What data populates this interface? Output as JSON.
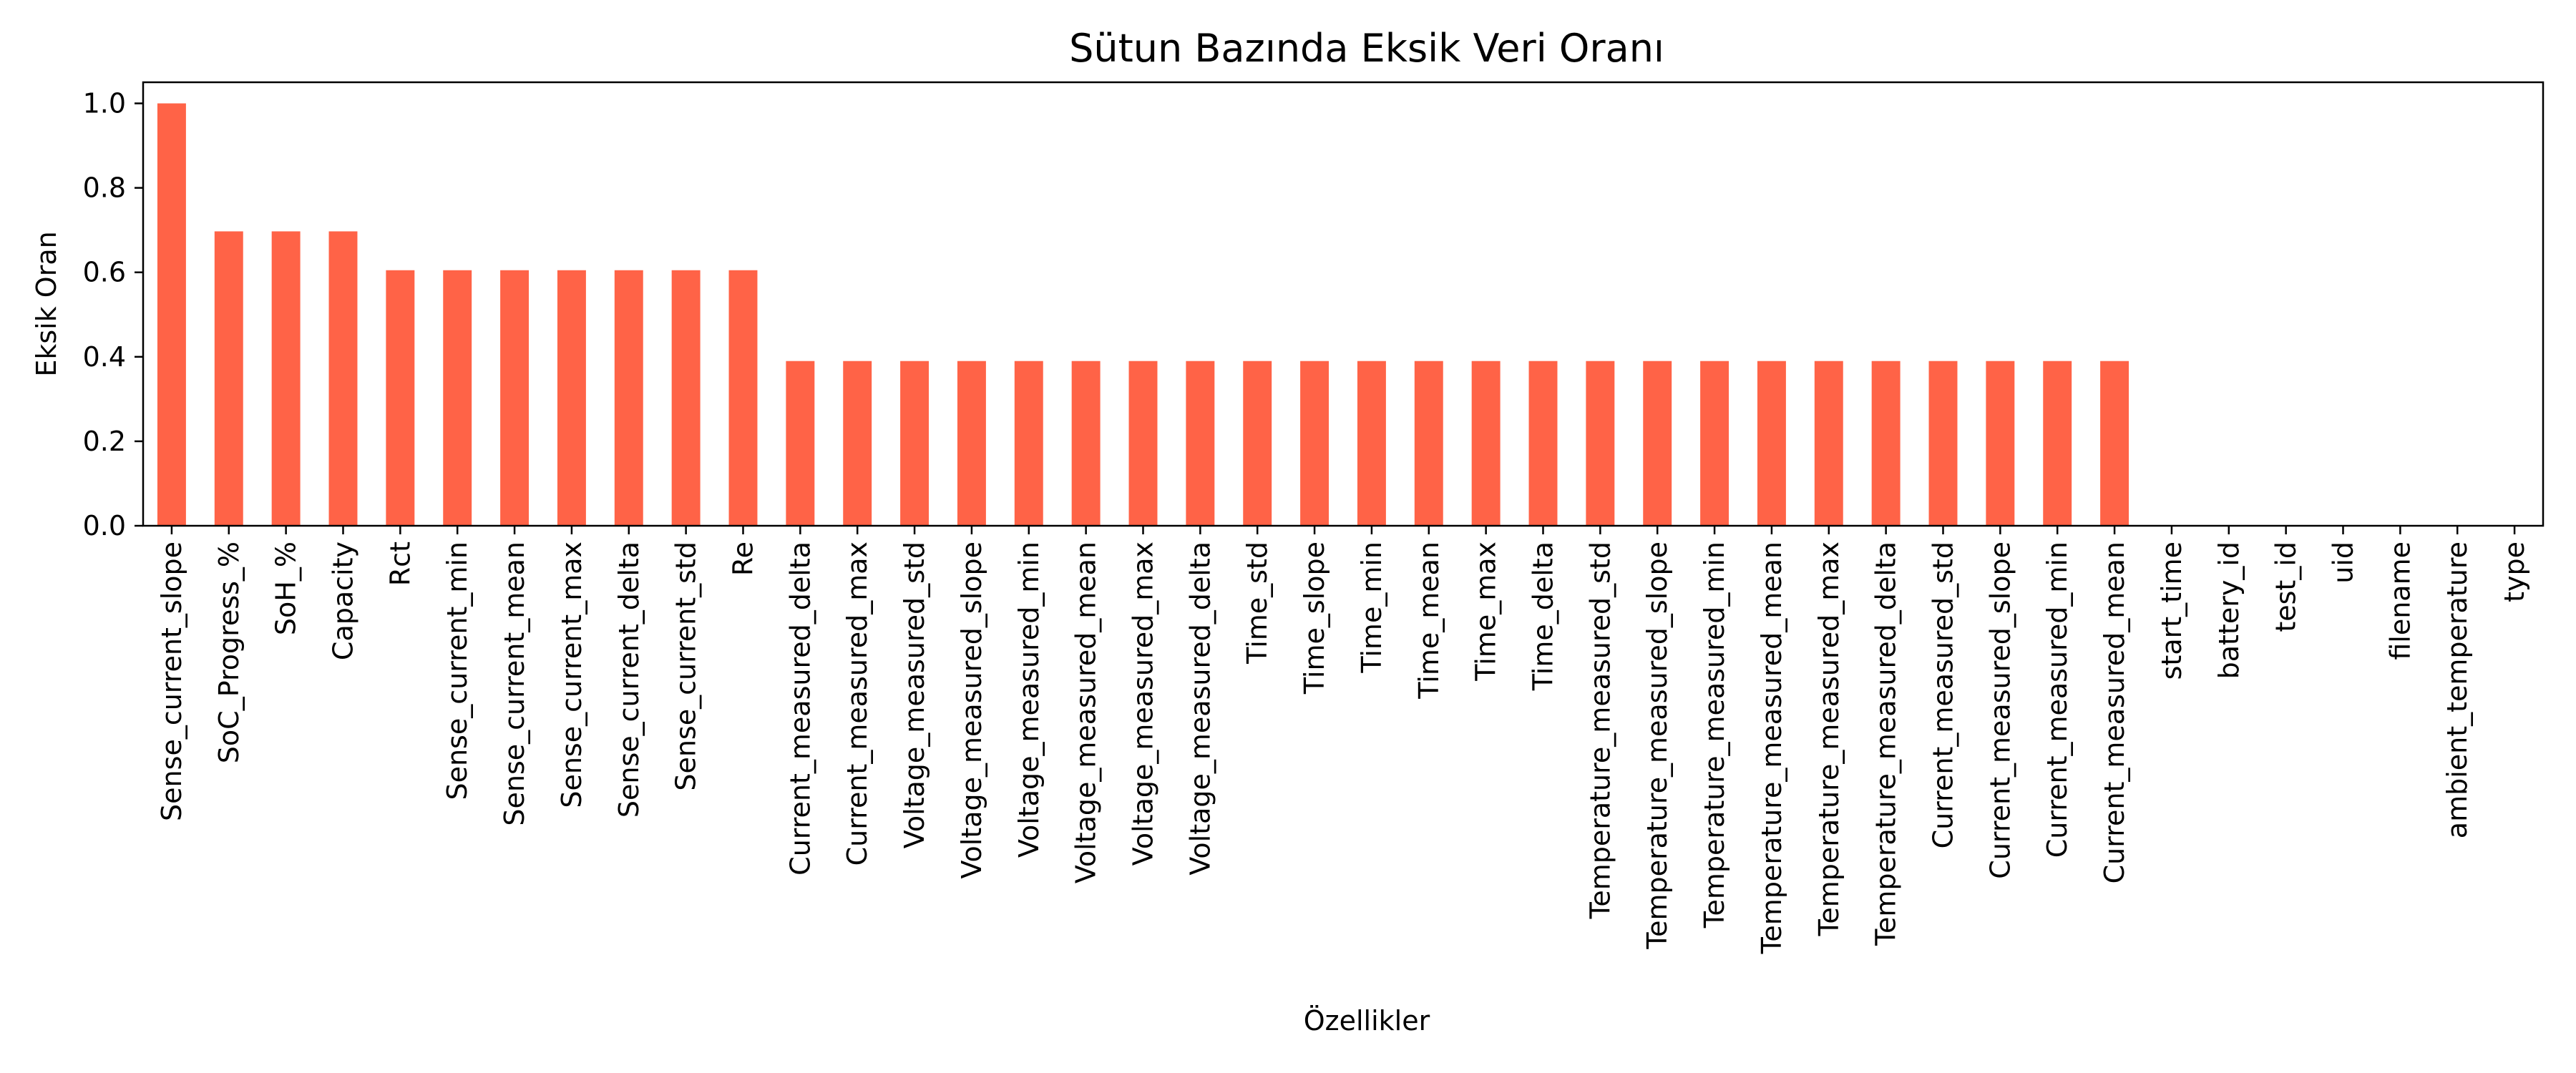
{
  "chart_data": {
    "type": "bar",
    "title": "Sütun Bazında Eksik Veri Oranı",
    "xlabel": "Özellikler",
    "ylabel": "Eksik Oran",
    "ylim": [
      0,
      1.05
    ],
    "yticks": [
      "0.0",
      "0.2",
      "0.4",
      "0.6",
      "0.8",
      "1.0"
    ],
    "grid": false,
    "legend": "none",
    "bar_color": "#ff6347",
    "categories": [
      "Sense_current_slope",
      "SoC_Progress_%",
      "SoH_%",
      "Capacity",
      "Rct",
      "Sense_current_min",
      "Sense_current_mean",
      "Sense_current_max",
      "Sense_current_delta",
      "Sense_current_std",
      "Re",
      "Current_measured_delta",
      "Current_measured_max",
      "Voltage_measured_std",
      "Voltage_measured_slope",
      "Voltage_measured_min",
      "Voltage_measured_mean",
      "Voltage_measured_max",
      "Voltage_measured_delta",
      "Time_std",
      "Time_slope",
      "Time_min",
      "Time_mean",
      "Time_max",
      "Time_delta",
      "Temperature_measured_std",
      "Temperature_measured_slope",
      "Temperature_measured_min",
      "Temperature_measured_mean",
      "Temperature_measured_max",
      "Temperature_measured_delta",
      "Current_measured_std",
      "Current_measured_slope",
      "Current_measured_min",
      "Current_measured_mean",
      "start_time",
      "battery_id",
      "test_id",
      "uid",
      "filename",
      "ambient_temperature",
      "type"
    ],
    "values": [
      1.0,
      0.697,
      0.697,
      0.697,
      0.605,
      0.605,
      0.605,
      0.605,
      0.605,
      0.605,
      0.605,
      0.39,
      0.39,
      0.39,
      0.39,
      0.39,
      0.39,
      0.39,
      0.39,
      0.39,
      0.39,
      0.39,
      0.39,
      0.39,
      0.39,
      0.39,
      0.39,
      0.39,
      0.39,
      0.39,
      0.39,
      0.39,
      0.39,
      0.39,
      0.39,
      0.0,
      0.0,
      0.0,
      0.0,
      0.0,
      0.0,
      0.0
    ]
  }
}
